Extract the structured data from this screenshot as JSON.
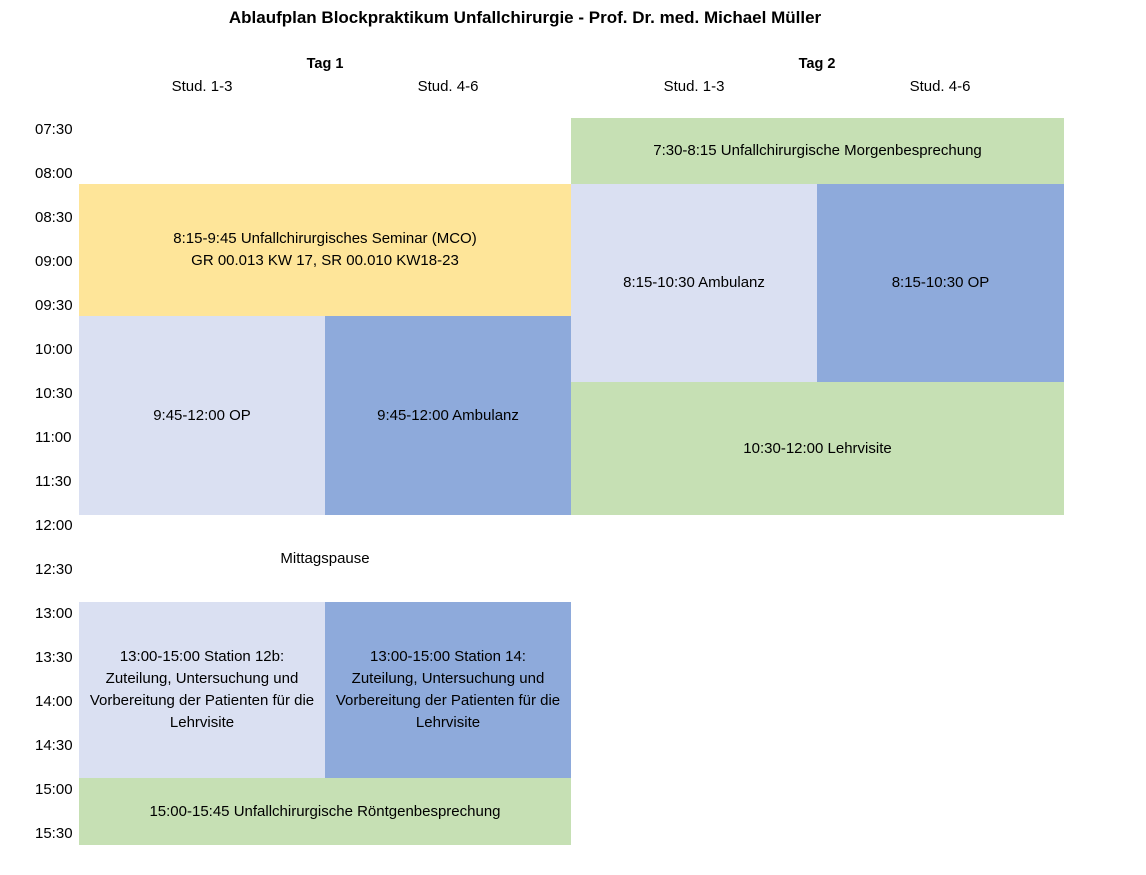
{
  "title": "Ablaufplan Blockpraktikum Unfallchirurgie - Prof. Dr. med. Michael Müller",
  "days": [
    {
      "label": "Tag 1",
      "groups": [
        "Stud. 1-3",
        "Stud. 4-6"
      ]
    },
    {
      "label": "Tag 2",
      "groups": [
        "Stud. 1-3",
        "Stud. 4-6"
      ]
    }
  ],
  "times": [
    "07:30",
    "08:00",
    "08:30",
    "09:00",
    "09:30",
    "10:00",
    "10:30",
    "11:00",
    "11:30",
    "12:00",
    "12:30",
    "13:00",
    "13:30",
    "14:00",
    "14:30",
    "15:00",
    "15:30"
  ],
  "colors": {
    "light": "#dae0f2",
    "blue": "#8eaadb",
    "green": "#c6e0b4",
    "yellow": "#fee599"
  },
  "blocks": {
    "seminar": "8:15-9:45 Unfallchirurgisches Seminar (MCO)\nGR 00.013 KW 17, SR 00.010 KW18-23",
    "day1_op": "9:45-12:00 OP",
    "day1_ambulanz": "9:45-12:00 Ambulanz",
    "lunch": "Mittagspause",
    "station_12b": "13:00-15:00 Station 12b:\nZuteilung, Untersuchung und\nVorbereitung der Patienten für die\nLehrvisite",
    "station_14": "13:00-15:00 Station 14:\nZuteilung, Untersuchung und\nVorbereitung der Patienten für die\nLehrvisite",
    "roentgen": "15:00-15:45 Unfallchirurgische Röntgenbesprechung",
    "morgen": "7:30-8:15 Unfallchirurgische Morgenbesprechung",
    "day2_ambulanz": "8:15-10:30 Ambulanz",
    "day2_op": "8:15-10:30 OP",
    "lehrvisite": "10:30-12:00 Lehrvisite"
  }
}
